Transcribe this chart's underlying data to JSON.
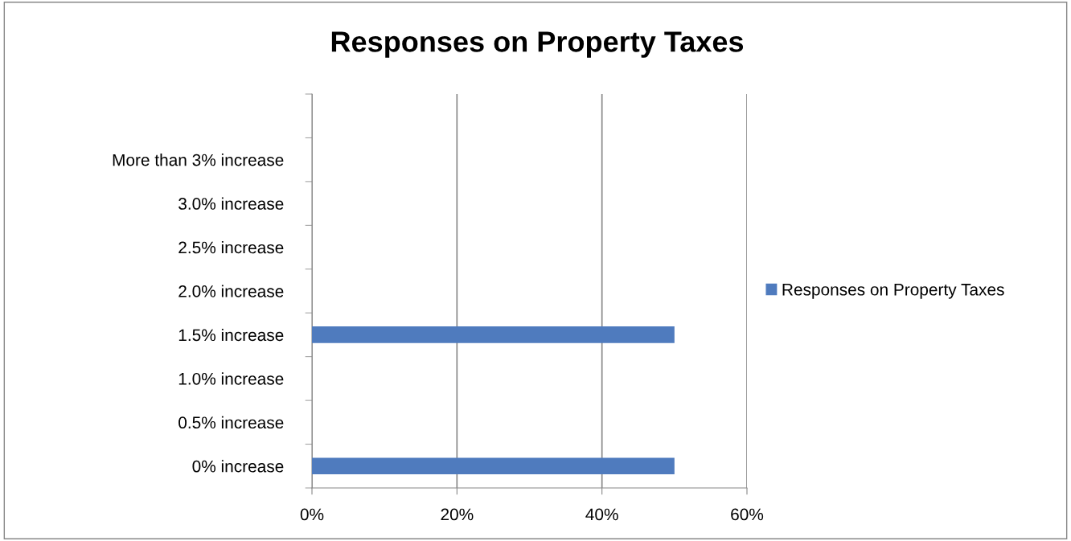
{
  "chart_data": {
    "type": "bar",
    "orientation": "horizontal",
    "title": "Responses on Property Taxes",
    "categories": [
      null,
      "More than 3% increase",
      "3.0% increase",
      "2.5% increase",
      "2.0% increase",
      "1.5% increase",
      "1.0% increase",
      "0.5% increase",
      "0% increase"
    ],
    "series": [
      {
        "name": "Responses on Property Taxes",
        "color": "#4f7bbe",
        "values": [
          null,
          0,
          0,
          0,
          0,
          50,
          0,
          0,
          50
        ]
      }
    ],
    "xlim": [
      0,
      60
    ],
    "xticks": [
      {
        "value": 0,
        "label": "0%"
      },
      {
        "value": 20,
        "label": "20%"
      },
      {
        "value": 40,
        "label": "40%"
      },
      {
        "value": 60,
        "label": "60%"
      }
    ],
    "grid": "x",
    "legend": "right"
  }
}
